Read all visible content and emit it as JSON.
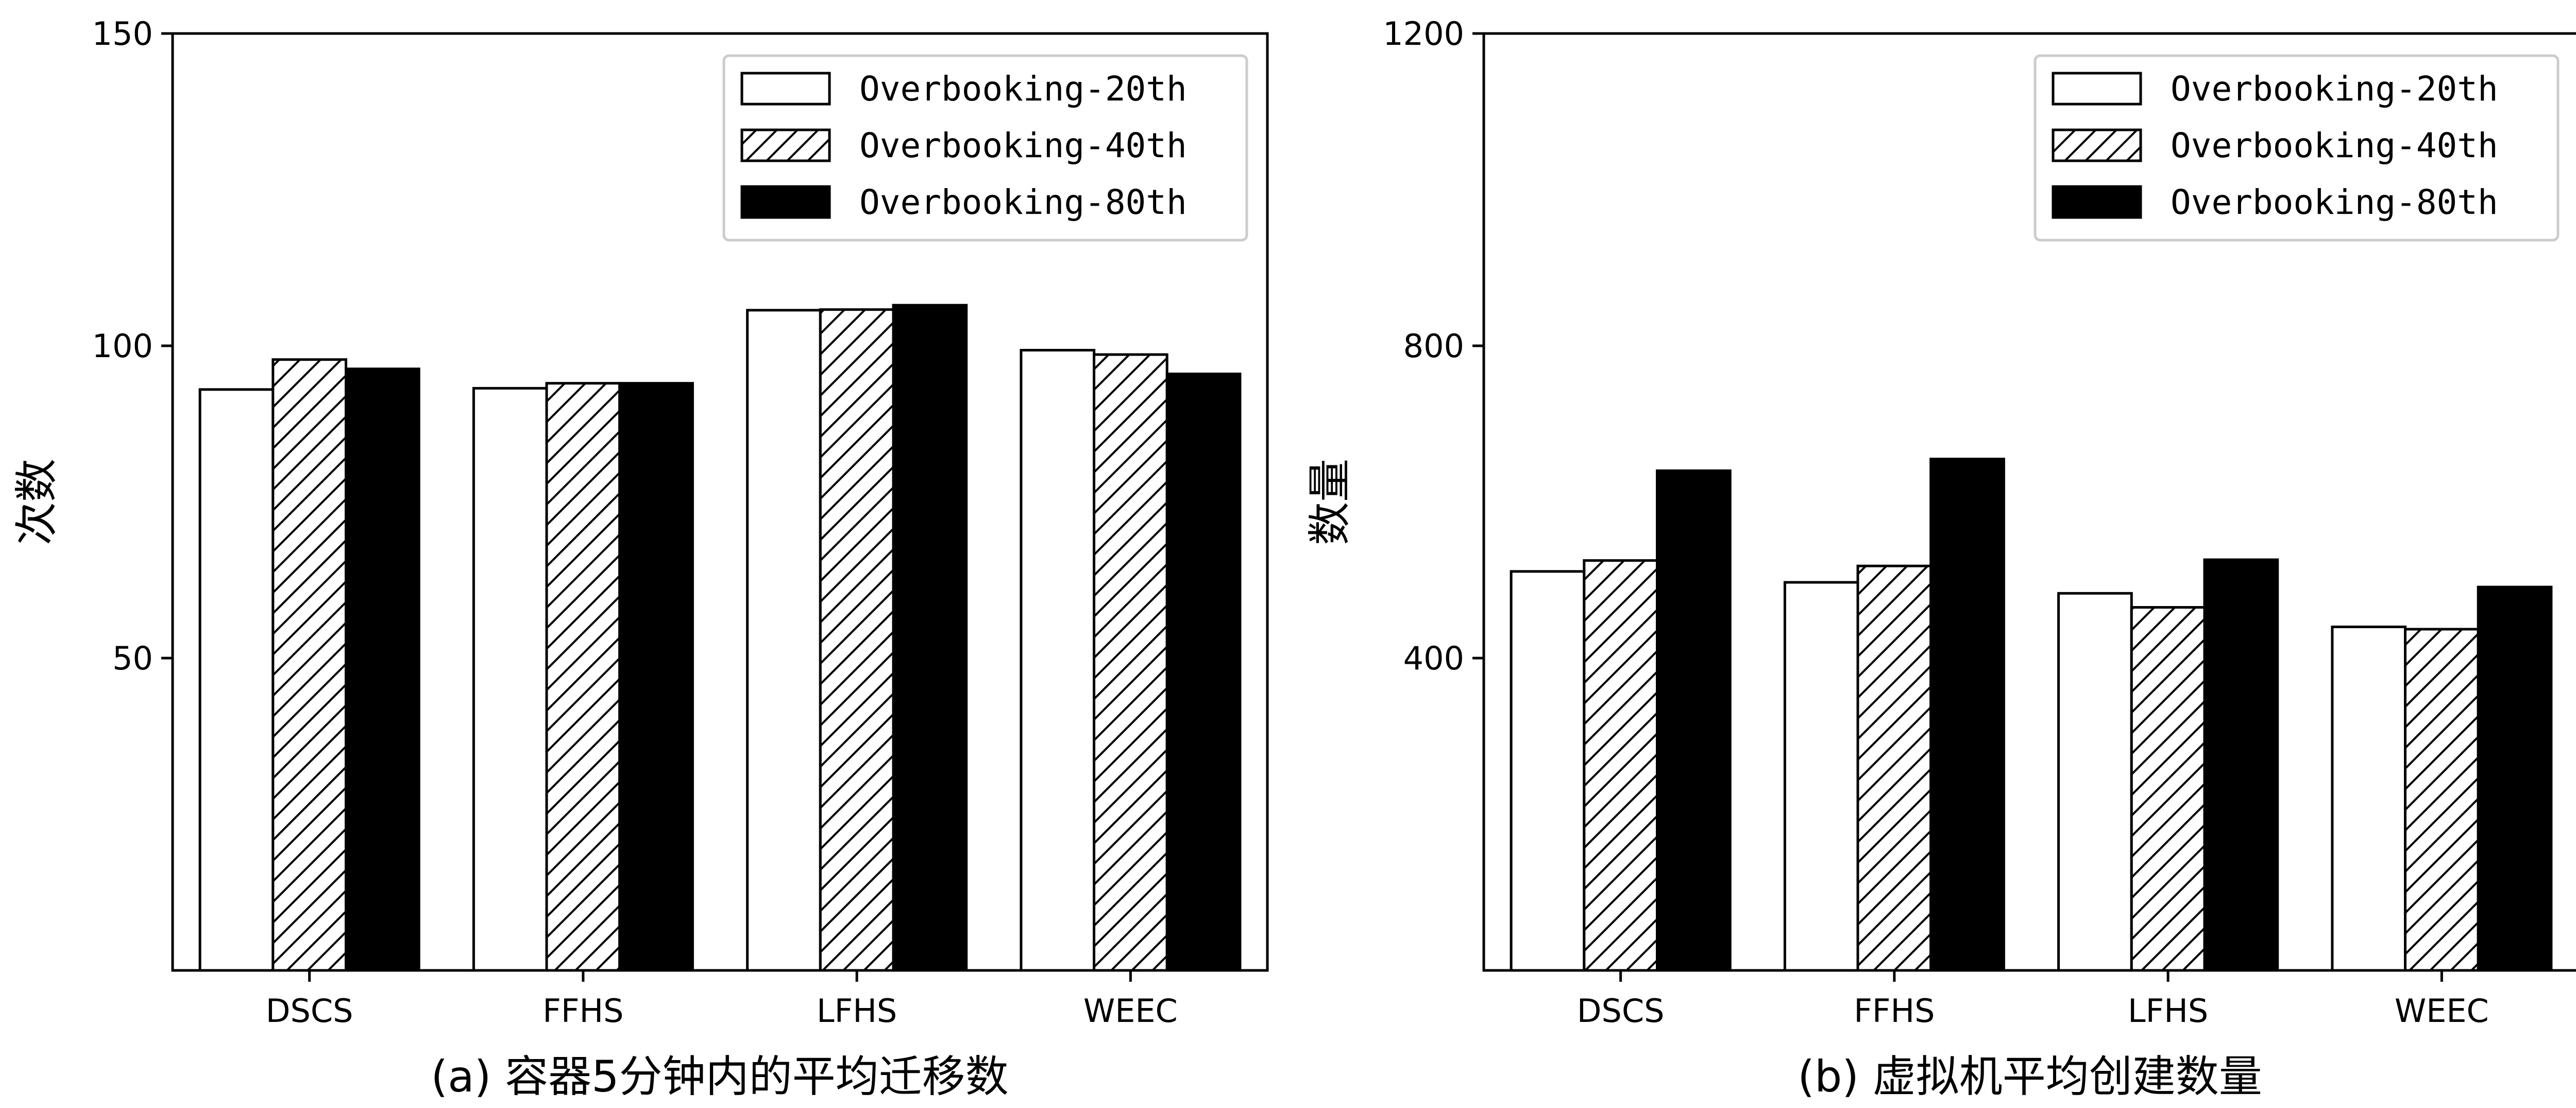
{
  "chart_data": [
    {
      "type": "bar",
      "caption": "(a) 容器5分钟内的平均迁移数",
      "ylabel": "次数",
      "xlabel": "",
      "categories": [
        "DSCS",
        "FFHS",
        "LFHS",
        "WEEC"
      ],
      "ylim": [
        0,
        150
      ],
      "yticks": [
        50,
        100,
        150
      ],
      "legend_position": "top-right",
      "series": [
        {
          "name": "Overbooking-20th",
          "style": "white",
          "values": [
            93,
            93.2,
            105.7,
            99.3
          ]
        },
        {
          "name": "Overbooking-40th",
          "style": "hatched",
          "values": [
            97.8,
            94,
            105.8,
            98.6
          ]
        },
        {
          "name": "Overbooking-80th",
          "style": "black",
          "values": [
            96.3,
            94,
            106.5,
            95.5
          ]
        }
      ]
    },
    {
      "type": "bar",
      "caption": "(b) 虚拟机平均创建数量",
      "ylabel": "数量",
      "xlabel": "",
      "categories": [
        "DSCS",
        "FFHS",
        "LFHS",
        "WEEC"
      ],
      "ylim": [
        0,
        1200
      ],
      "yticks": [
        400,
        800,
        1200
      ],
      "legend_position": "top-right",
      "series": [
        {
          "name": "Overbooking-20th",
          "style": "white",
          "values": [
            511,
            497,
            483,
            440
          ]
        },
        {
          "name": "Overbooking-40th",
          "style": "hatched",
          "values": [
            525,
            518,
            465,
            437
          ]
        },
        {
          "name": "Overbooking-80th",
          "style": "black",
          "values": [
            640,
            655,
            526,
            491
          ]
        }
      ]
    }
  ],
  "colors": {
    "bar_white": "#ffffff",
    "bar_black": "#000000",
    "stroke": "#000000",
    "legend_border": "#cccccc"
  }
}
